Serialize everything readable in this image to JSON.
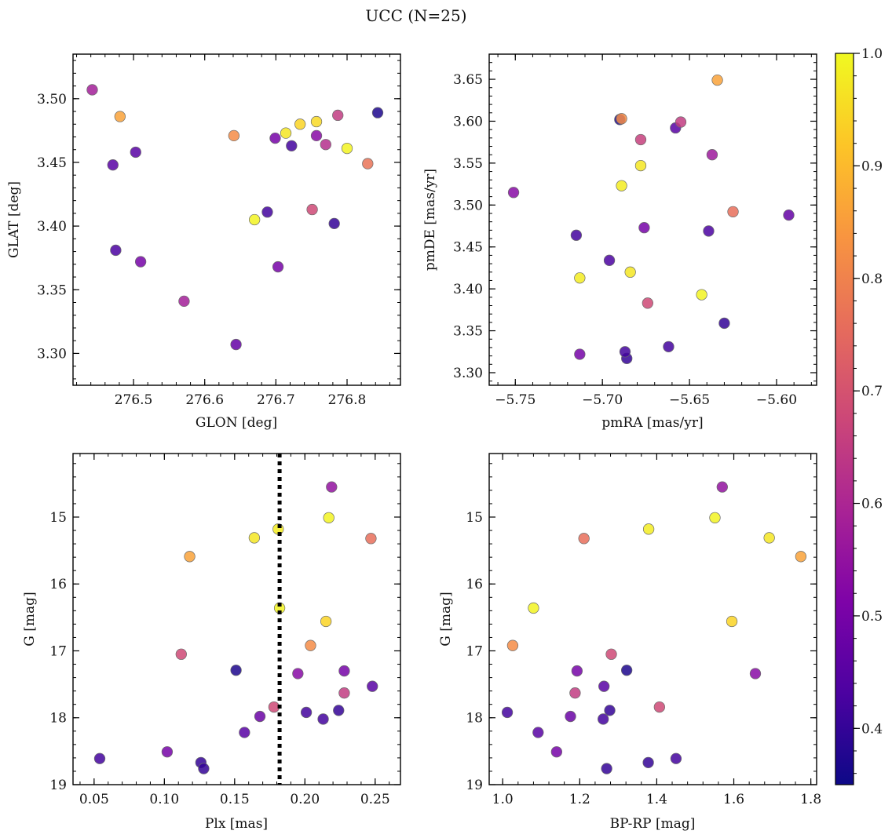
{
  "title": "UCC (N=25)",
  "colorbar": {
    "cmap": "plasma",
    "range": [
      0.35,
      1.0
    ],
    "ticks": [
      "0.4",
      "0.5",
      "0.6",
      "0.7",
      "0.8",
      "0.9",
      "1.0"
    ]
  },
  "chart_data": [
    {
      "type": "scatter",
      "xlabel": "GLON [deg]",
      "ylabel": "GLAT [deg]",
      "xlim": [
        276.415,
        276.875
      ],
      "ylim": [
        3.275,
        3.535
      ],
      "xticks": [
        "276.5",
        "276.6",
        "276.7",
        "276.8"
      ],
      "yticks": [
        "3.30",
        "3.35",
        "3.40",
        "3.45",
        "3.50"
      ],
      "points": [
        {
          "x": 276.843,
          "y": 3.489,
          "c": 0.37
        },
        {
          "x": 276.782,
          "y": 3.402,
          "c": 0.4
        },
        {
          "x": 276.722,
          "y": 3.463,
          "c": 0.42
        },
        {
          "x": 276.688,
          "y": 3.411,
          "c": 0.42
        },
        {
          "x": 276.471,
          "y": 3.448,
          "c": 0.45
        },
        {
          "x": 276.475,
          "y": 3.381,
          "c": 0.43
        },
        {
          "x": 276.503,
          "y": 3.458,
          "c": 0.45
        },
        {
          "x": 276.51,
          "y": 3.372,
          "c": 0.5
        },
        {
          "x": 276.703,
          "y": 3.368,
          "c": 0.5
        },
        {
          "x": 276.644,
          "y": 3.307,
          "c": 0.47
        },
        {
          "x": 276.699,
          "y": 3.469,
          "c": 0.5
        },
        {
          "x": 276.757,
          "y": 3.471,
          "c": 0.53
        },
        {
          "x": 276.442,
          "y": 3.507,
          "c": 0.58
        },
        {
          "x": 276.571,
          "y": 3.341,
          "c": 0.58
        },
        {
          "x": 276.77,
          "y": 3.464,
          "c": 0.62
        },
        {
          "x": 276.787,
          "y": 3.487,
          "c": 0.65
        },
        {
          "x": 276.751,
          "y": 3.413,
          "c": 0.68
        },
        {
          "x": 276.829,
          "y": 3.449,
          "c": 0.77
        },
        {
          "x": 276.641,
          "y": 3.471,
          "c": 0.82
        },
        {
          "x": 276.481,
          "y": 3.486,
          "c": 0.86
        },
        {
          "x": 276.734,
          "y": 3.48,
          "c": 0.94
        },
        {
          "x": 276.757,
          "y": 3.482,
          "c": 0.95
        },
        {
          "x": 276.714,
          "y": 3.473,
          "c": 0.97
        },
        {
          "x": 276.8,
          "y": 3.461,
          "c": 0.99
        },
        {
          "x": 276.67,
          "y": 3.405,
          "c": 0.99
        }
      ]
    },
    {
      "type": "scatter",
      "xlabel": "pmRA [mas/yr]",
      "ylabel": "pmDE [mas/yr]",
      "xlim": [
        -5.765,
        -5.577
      ],
      "ylim": [
        3.285,
        3.68
      ],
      "xticks": [
        "−5.75",
        "−5.70",
        "−5.65",
        "−5.60"
      ],
      "yticks": [
        "3.30",
        "3.35",
        "3.40",
        "3.45",
        "3.50",
        "3.55",
        "3.60",
        "3.65"
      ],
      "points": [
        {
          "x": -5.69,
          "y": 3.602,
          "c": 0.37
        },
        {
          "x": -5.63,
          "y": 3.359,
          "c": 0.4
        },
        {
          "x": -5.686,
          "y": 3.317,
          "c": 0.4
        },
        {
          "x": -5.687,
          "y": 3.325,
          "c": 0.42
        },
        {
          "x": -5.662,
          "y": 3.331,
          "c": 0.42
        },
        {
          "x": -5.696,
          "y": 3.434,
          "c": 0.43
        },
        {
          "x": -5.715,
          "y": 3.464,
          "c": 0.42
        },
        {
          "x": -5.639,
          "y": 3.469,
          "c": 0.43
        },
        {
          "x": -5.658,
          "y": 3.592,
          "c": 0.45
        },
        {
          "x": -5.593,
          "y": 3.488,
          "c": 0.47
        },
        {
          "x": -5.713,
          "y": 3.322,
          "c": 0.5
        },
        {
          "x": -5.676,
          "y": 3.473,
          "c": 0.5
        },
        {
          "x": -5.751,
          "y": 3.515,
          "c": 0.53
        },
        {
          "x": -5.637,
          "y": 3.56,
          "c": 0.57
        },
        {
          "x": -5.655,
          "y": 3.599,
          "c": 0.65
        },
        {
          "x": -5.678,
          "y": 3.578,
          "c": 0.66
        },
        {
          "x": -5.674,
          "y": 3.383,
          "c": 0.68
        },
        {
          "x": -5.625,
          "y": 3.492,
          "c": 0.76
        },
        {
          "x": -5.689,
          "y": 3.603,
          "c": 0.82
        },
        {
          "x": -5.634,
          "y": 3.649,
          "c": 0.86
        },
        {
          "x": -5.678,
          "y": 3.547,
          "c": 0.97
        },
        {
          "x": -5.689,
          "y": 3.523,
          "c": 0.98
        },
        {
          "x": -5.713,
          "y": 3.413,
          "c": 0.98
        },
        {
          "x": -5.684,
          "y": 3.42,
          "c": 0.97
        },
        {
          "x": -5.643,
          "y": 3.393,
          "c": 0.99
        }
      ]
    },
    {
      "type": "scatter",
      "xlabel": "Plx [mas]",
      "ylabel": "G [mag]",
      "xlim": [
        0.035,
        0.268
      ],
      "ylim": [
        19.0,
        14.05
      ],
      "yinverted": true,
      "vline": 0.182,
      "xticks": [
        "0.05",
        "0.10",
        "0.15",
        "0.20",
        "0.25"
      ],
      "yticks": [
        "15",
        "16",
        "17",
        "18",
        "19"
      ],
      "points": [
        {
          "x": 0.151,
          "y": 17.29,
          "c": 0.37
        },
        {
          "x": 0.224,
          "y": 17.89,
          "c": 0.4
        },
        {
          "x": 0.213,
          "y": 18.02,
          "c": 0.42
        },
        {
          "x": 0.201,
          "y": 17.92,
          "c": 0.42
        },
        {
          "x": 0.126,
          "y": 18.67,
          "c": 0.4
        },
        {
          "x": 0.128,
          "y": 18.76,
          "c": 0.4
        },
        {
          "x": 0.054,
          "y": 18.61,
          "c": 0.42
        },
        {
          "x": 0.248,
          "y": 17.53,
          "c": 0.45
        },
        {
          "x": 0.157,
          "y": 18.22,
          "c": 0.45
        },
        {
          "x": 0.168,
          "y": 17.98,
          "c": 0.48
        },
        {
          "x": 0.102,
          "y": 18.51,
          "c": 0.5
        },
        {
          "x": 0.228,
          "y": 17.3,
          "c": 0.5
        },
        {
          "x": 0.195,
          "y": 17.34,
          "c": 0.53
        },
        {
          "x": 0.219,
          "y": 14.55,
          "c": 0.55
        },
        {
          "x": 0.228,
          "y": 17.63,
          "c": 0.65
        },
        {
          "x": 0.112,
          "y": 17.05,
          "c": 0.68
        },
        {
          "x": 0.178,
          "y": 17.84,
          "c": 0.68
        },
        {
          "x": 0.247,
          "y": 15.32,
          "c": 0.76
        },
        {
          "x": 0.204,
          "y": 16.92,
          "c": 0.82
        },
        {
          "x": 0.118,
          "y": 15.59,
          "c": 0.86
        },
        {
          "x": 0.215,
          "y": 16.56,
          "c": 0.94
        },
        {
          "x": 0.164,
          "y": 15.31,
          "c": 0.97
        },
        {
          "x": 0.181,
          "y": 15.18,
          "c": 0.98
        },
        {
          "x": 0.217,
          "y": 15.01,
          "c": 0.99
        },
        {
          "x": 0.182,
          "y": 16.36,
          "c": 0.99
        }
      ]
    },
    {
      "type": "scatter",
      "xlabel": "BP-RP [mag]",
      "ylabel": "G [mag]",
      "xlim": [
        0.965,
        1.815
      ],
      "ylim": [
        19.0,
        14.05
      ],
      "yinverted": true,
      "xticks": [
        "1.0",
        "1.2",
        "1.4",
        "1.6",
        "1.8"
      ],
      "yticks": [
        "15",
        "16",
        "17",
        "18",
        "19"
      ],
      "points": [
        {
          "x": 1.322,
          "y": 17.29,
          "c": 0.37
        },
        {
          "x": 1.278,
          "y": 17.89,
          "c": 0.4
        },
        {
          "x": 1.261,
          "y": 18.02,
          "c": 0.42
        },
        {
          "x": 1.012,
          "y": 17.92,
          "c": 0.42
        },
        {
          "x": 1.378,
          "y": 18.67,
          "c": 0.4
        },
        {
          "x": 1.27,
          "y": 18.76,
          "c": 0.4
        },
        {
          "x": 1.45,
          "y": 18.61,
          "c": 0.42
        },
        {
          "x": 1.263,
          "y": 17.53,
          "c": 0.45
        },
        {
          "x": 1.092,
          "y": 18.22,
          "c": 0.45
        },
        {
          "x": 1.176,
          "y": 17.98,
          "c": 0.48
        },
        {
          "x": 1.14,
          "y": 18.51,
          "c": 0.5
        },
        {
          "x": 1.193,
          "y": 17.3,
          "c": 0.5
        },
        {
          "x": 1.656,
          "y": 17.34,
          "c": 0.53
        },
        {
          "x": 1.57,
          "y": 14.55,
          "c": 0.55
        },
        {
          "x": 1.188,
          "y": 17.63,
          "c": 0.65
        },
        {
          "x": 1.282,
          "y": 17.05,
          "c": 0.68
        },
        {
          "x": 1.407,
          "y": 17.84,
          "c": 0.68
        },
        {
          "x": 1.211,
          "y": 15.32,
          "c": 0.76
        },
        {
          "x": 1.026,
          "y": 16.92,
          "c": 0.82
        },
        {
          "x": 1.774,
          "y": 15.59,
          "c": 0.86
        },
        {
          "x": 1.595,
          "y": 16.56,
          "c": 0.94
        },
        {
          "x": 1.692,
          "y": 15.31,
          "c": 0.97
        },
        {
          "x": 1.379,
          "y": 15.18,
          "c": 0.98
        },
        {
          "x": 1.551,
          "y": 15.01,
          "c": 0.99
        },
        {
          "x": 1.08,
          "y": 16.36,
          "c": 0.99
        }
      ]
    }
  ]
}
